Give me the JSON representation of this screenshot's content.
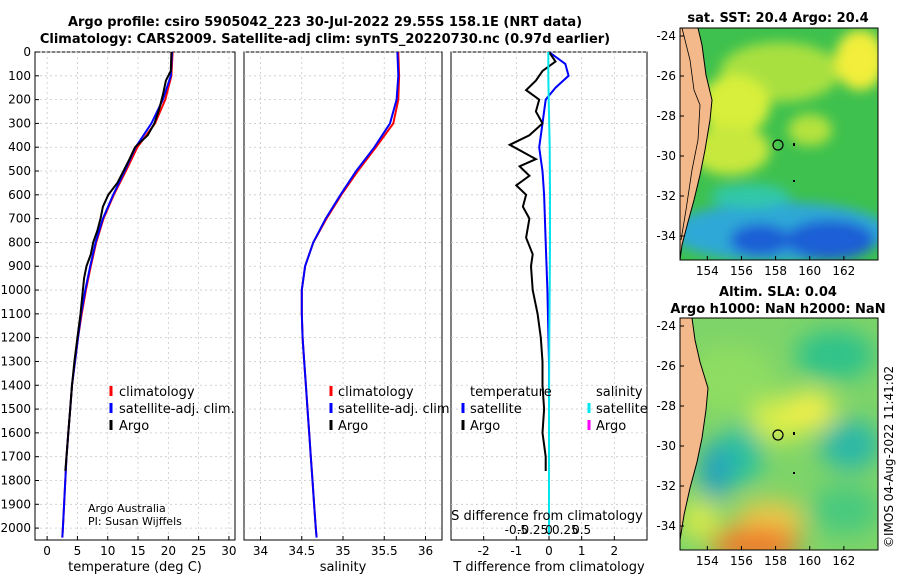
{
  "header": {
    "title_line1": "Argo profile: csiro 5905042_223 30-Jul-2022 29.55S 158.1E (NRT data)",
    "title_line2": "Climatology: CARS2009. Satellite-adj clim: synTS_20220730.nc (0.97d earlier)"
  },
  "colors": {
    "climatology": "#ff0000",
    "satellite_adj": "#0000ff",
    "argo": "#000000",
    "temp_satellite": "#0000ff",
    "sal_satellite": "#00e5ee",
    "sal_argo": "#ff00ff"
  },
  "credits": {
    "line1": "Argo Australia",
    "line2": "PI: Susan Wijffels"
  },
  "side_stamp": "©IMOS 04-Aug-2022 11:41:02",
  "chart_data": [
    {
      "type": "line",
      "name": "temperature-profile",
      "xlabel": "temperature (deg C)",
      "ylabel": "",
      "xlim": [
        -2,
        31
      ],
      "ylim": [
        2050,
        0
      ],
      "x_ticks": [
        0,
        5,
        10,
        15,
        20,
        25,
        30
      ],
      "y_ticks": [
        0,
        100,
        200,
        300,
        400,
        500,
        600,
        700,
        800,
        900,
        1000,
        1100,
        1200,
        1300,
        1400,
        1500,
        1600,
        1700,
        1800,
        1900,
        2000
      ],
      "grid": true,
      "legend": [
        "climatology",
        "satellite-adj. clim.",
        "Argo"
      ],
      "series": [
        {
          "name": "climatology",
          "color": "#ff0000",
          "points": [
            [
              20.7,
              0
            ],
            [
              20.5,
              100
            ],
            [
              19.5,
              200
            ],
            [
              17.8,
              300
            ],
            [
              14.9,
              400
            ],
            [
              13.0,
              500
            ],
            [
              11.0,
              600
            ],
            [
              9.3,
              700
            ],
            [
              8.1,
              800
            ],
            [
              7.2,
              900
            ],
            [
              6.4,
              1000
            ],
            [
              5.7,
              1100
            ],
            [
              5.1,
              1200
            ],
            [
              4.6,
              1300
            ],
            [
              4.1,
              1400
            ],
            [
              3.8,
              1500
            ],
            [
              3.5,
              1600
            ],
            [
              3.2,
              1700
            ],
            [
              3.0,
              1800
            ],
            [
              2.8,
              1900
            ],
            [
              2.6,
              2000
            ],
            [
              2.5,
              2040
            ]
          ]
        },
        {
          "name": "satellite-adj. clim.",
          "color": "#0000ff",
          "points": [
            [
              20.6,
              0
            ],
            [
              20.4,
              100
            ],
            [
              19.1,
              200
            ],
            [
              17.2,
              300
            ],
            [
              14.6,
              400
            ],
            [
              12.8,
              500
            ],
            [
              10.9,
              600
            ],
            [
              9.2,
              700
            ],
            [
              8.0,
              800
            ],
            [
              7.1,
              900
            ],
            [
              6.3,
              1000
            ],
            [
              5.6,
              1100
            ],
            [
              5.1,
              1200
            ],
            [
              4.6,
              1300
            ],
            [
              4.1,
              1400
            ],
            [
              3.8,
              1500
            ],
            [
              3.5,
              1600
            ],
            [
              3.2,
              1700
            ],
            [
              3.0,
              1800
            ],
            [
              2.8,
              1900
            ],
            [
              2.6,
              2000
            ],
            [
              2.5,
              2040
            ]
          ]
        },
        {
          "name": "Argo",
          "color": "#000000",
          "points": [
            [
              20.5,
              0
            ],
            [
              20.4,
              80
            ],
            [
              19.6,
              120
            ],
            [
              19.1,
              180
            ],
            [
              18.5,
              240
            ],
            [
              17.7,
              300
            ],
            [
              16.6,
              350
            ],
            [
              14.5,
              400
            ],
            [
              13.6,
              450
            ],
            [
              12.6,
              500
            ],
            [
              11.6,
              550
            ],
            [
              10.1,
              600
            ],
            [
              9.2,
              650
            ],
            [
              8.8,
              700
            ],
            [
              8.3,
              750
            ],
            [
              7.6,
              800
            ],
            [
              7.2,
              850
            ],
            [
              6.5,
              900
            ],
            [
              6.1,
              950
            ],
            [
              5.9,
              1000
            ],
            [
              5.5,
              1100
            ],
            [
              5.0,
              1200
            ],
            [
              4.5,
              1300
            ],
            [
              4.1,
              1400
            ],
            [
              3.8,
              1500
            ],
            [
              3.5,
              1600
            ],
            [
              3.2,
              1700
            ],
            [
              3.0,
              1760
            ]
          ]
        }
      ]
    },
    {
      "type": "line",
      "name": "salinity-profile",
      "xlabel": "salinity",
      "ylabel": "",
      "xlim": [
        33.8,
        36.2
      ],
      "ylim": [
        2050,
        0
      ],
      "x_ticks": [
        34,
        34.5,
        35,
        35.5,
        36
      ],
      "x_tick_labels": [
        "34",
        "34.5",
        "35",
        "35.5",
        "36"
      ],
      "grid": true,
      "legend": [
        "climatology",
        "satellite-adj. clim.",
        "Argo"
      ],
      "series": [
        {
          "name": "climatology",
          "color": "#ff0000",
          "points": [
            [
              35.67,
              0
            ],
            [
              35.68,
              100
            ],
            [
              35.67,
              200
            ],
            [
              35.61,
              300
            ],
            [
              35.4,
              400
            ],
            [
              35.18,
              500
            ],
            [
              34.98,
              600
            ],
            [
              34.8,
              700
            ],
            [
              34.64,
              800
            ],
            [
              34.54,
              900
            ],
            [
              34.5,
              1000
            ],
            [
              34.5,
              1100
            ],
            [
              34.51,
              1200
            ],
            [
              34.53,
              1300
            ],
            [
              34.55,
              1400
            ],
            [
              34.57,
              1500
            ],
            [
              34.59,
              1600
            ],
            [
              34.61,
              1700
            ],
            [
              34.63,
              1800
            ],
            [
              34.65,
              1900
            ],
            [
              34.67,
              2000
            ],
            [
              34.68,
              2040
            ]
          ]
        },
        {
          "name": "satellite-adj. clim.",
          "color": "#0000ff",
          "points": [
            [
              35.66,
              0
            ],
            [
              35.67,
              100
            ],
            [
              35.65,
              200
            ],
            [
              35.57,
              300
            ],
            [
              35.38,
              400
            ],
            [
              35.16,
              500
            ],
            [
              34.97,
              600
            ],
            [
              34.79,
              700
            ],
            [
              34.64,
              800
            ],
            [
              34.54,
              900
            ],
            [
              34.5,
              1000
            ],
            [
              34.5,
              1100
            ],
            [
              34.51,
              1200
            ],
            [
              34.53,
              1300
            ],
            [
              34.55,
              1400
            ],
            [
              34.57,
              1500
            ],
            [
              34.59,
              1600
            ],
            [
              34.61,
              1700
            ],
            [
              34.63,
              1800
            ],
            [
              34.65,
              1900
            ],
            [
              34.67,
              2000
            ],
            [
              34.68,
              2040
            ]
          ]
        }
      ]
    },
    {
      "type": "line",
      "name": "difference-profile",
      "xlabel": "T difference from climatology",
      "x2label": "S difference from climatology",
      "ylabel": "",
      "xlim": [
        -3,
        3
      ],
      "ylim": [
        2050,
        0
      ],
      "x_ticks": [
        -2,
        -1,
        0,
        1,
        2
      ],
      "x_tick_labels": [
        "-2",
        "-1",
        "0",
        "1",
        "2"
      ],
      "x2_tick_labels": [
        "-0.5",
        "-0.25",
        "0",
        "0.25",
        "0.5"
      ],
      "grid": true,
      "legend_temperature_title": "temperature",
      "legend_salinity_title": "salinity",
      "legend_temperature": [
        "satellite",
        "Argo"
      ],
      "legend_salinity": [
        "satellite",
        "Argo"
      ],
      "series": [
        {
          "name": "temperature satellite",
          "color": "#0000ff",
          "points": [
            [
              0.0,
              0
            ],
            [
              0.5,
              50
            ],
            [
              0.6,
              100
            ],
            [
              0.2,
              150
            ],
            [
              -0.1,
              200
            ],
            [
              -0.2,
              300
            ],
            [
              -0.3,
              400
            ],
            [
              -0.25,
              450
            ],
            [
              -0.2,
              500
            ],
            [
              -0.15,
              600
            ],
            [
              -0.1,
              800
            ],
            [
              -0.05,
              1000
            ],
            [
              0.0,
              1300
            ],
            [
              0.0,
              2030
            ]
          ]
        },
        {
          "name": "temperature Argo",
          "color": "#000000",
          "points": [
            [
              0.0,
              0
            ],
            [
              0.2,
              40
            ],
            [
              -0.2,
              80
            ],
            [
              -0.4,
              120
            ],
            [
              -0.7,
              160
            ],
            [
              -0.3,
              200
            ],
            [
              -0.4,
              250
            ],
            [
              -0.2,
              300
            ],
            [
              -0.6,
              350
            ],
            [
              -1.2,
              390
            ],
            [
              -0.8,
              420
            ],
            [
              -0.4,
              450
            ],
            [
              -0.9,
              480
            ],
            [
              -0.6,
              520
            ],
            [
              -1.0,
              560
            ],
            [
              -0.7,
              600
            ],
            [
              -0.8,
              650
            ],
            [
              -0.6,
              700
            ],
            [
              -0.7,
              780
            ],
            [
              -0.5,
              850
            ],
            [
              -0.55,
              900
            ],
            [
              -0.5,
              1000
            ],
            [
              -0.35,
              1100
            ],
            [
              -0.25,
              1200
            ],
            [
              -0.2,
              1300
            ],
            [
              -0.2,
              1400
            ],
            [
              -0.15,
              1500
            ],
            [
              -0.2,
              1600
            ],
            [
              -0.1,
              1700
            ],
            [
              -0.1,
              1760
            ]
          ]
        },
        {
          "name": "salinity satellite",
          "color": "#00e5ee",
          "points": [
            [
              -0.02,
              0
            ],
            [
              -0.02,
              100
            ],
            [
              -0.01,
              200
            ],
            [
              0.02,
              400
            ],
            [
              0.03,
              600
            ],
            [
              0.03,
              800
            ],
            [
              0.02,
              1000
            ],
            [
              0.01,
              1200
            ],
            [
              0.0,
              1500
            ],
            [
              0.0,
              2030
            ]
          ]
        }
      ]
    },
    {
      "type": "heatmap",
      "name": "sst-map",
      "title": "sat. SST: 20.4 Argo: 20.4",
      "x_ticks": [
        154,
        156,
        158,
        160,
        162
      ],
      "y_ticks": [
        -24,
        -26,
        -28,
        -30,
        -32,
        -34
      ],
      "xlim": [
        152.4,
        164.0
      ],
      "ylim": [
        -35.2,
        -23.6
      ],
      "profile_marker": {
        "lon": 158.1,
        "lat": -29.55
      }
    },
    {
      "type": "heatmap",
      "name": "sla-map",
      "title": "Altim. SLA: 0.04",
      "subtitle": "Argo h1000: NaN h2000: NaN",
      "x_ticks": [
        154,
        156,
        158,
        160,
        162
      ],
      "y_ticks": [
        -24,
        -26,
        -28,
        -30,
        -32,
        -34
      ],
      "xlim": [
        152.4,
        164.0
      ],
      "ylim": [
        -35.2,
        -23.6
      ],
      "profile_marker": {
        "lon": 158.1,
        "lat": -29.55
      }
    }
  ]
}
